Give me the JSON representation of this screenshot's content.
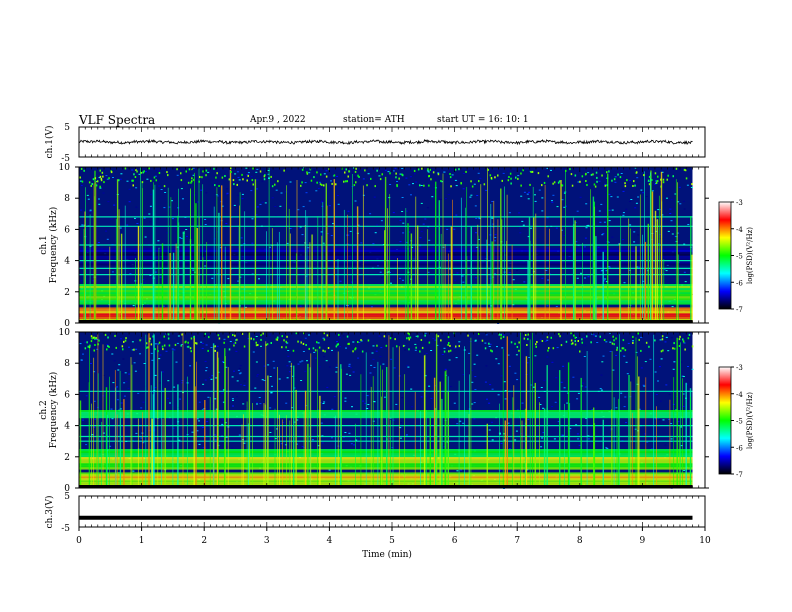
{
  "header": {
    "title": "VLF  Spectra",
    "date": "Apr.9  , 2022",
    "station": "station= ATH",
    "start": "start  UT  =   16: 10: 1"
  },
  "colors": {
    "spectrogram_background": "#00127a",
    "colorbar_stops": [
      "#000000",
      "#0000ff",
      "#00ffff",
      "#00ff00",
      "#ffff00",
      "#ff0000",
      "#ffffff"
    ]
  },
  "chart_data": [
    {
      "type": "line",
      "panel": "ch1-waveform",
      "ylabel": "ch.1(V)",
      "yticks": [
        "5",
        "-5"
      ],
      "ylim": [
        -5,
        5
      ],
      "x_range_min": [
        0,
        9.8
      ],
      "series": [
        {
          "values": "noisy trace near 0 V, amplitude about ±0.6 V"
        }
      ]
    },
    {
      "type": "heatmap",
      "panel": "ch1-spectrogram",
      "ylabel": "Frequency  (kHz)",
      "channel_label": "ch.1",
      "yticks": [
        "0",
        "2",
        "4",
        "6",
        "8",
        "10"
      ],
      "ylim": [
        0,
        10
      ],
      "xlim": [
        0,
        10
      ],
      "data_end_min": 9.8,
      "colorbar": {
        "label": "log(PSD)(V²/Hz)",
        "ticks": [
          "-3",
          "-4",
          "-5",
          "-6",
          "-7"
        ],
        "range": [
          -7,
          -3
        ]
      },
      "features": [
        {
          "name": "strong low-frequency band",
          "freq_khz": [
            0,
            1.0
          ],
          "log_psd": -4
        },
        {
          "name": "enhanced band",
          "freq_khz": [
            1.2,
            2.5
          ],
          "log_psd": -5
        },
        {
          "name": "quiet band",
          "freq_khz": [
            3.7,
            4.8
          ],
          "log_psd": -6.8
        },
        {
          "name": "horizontal tone lines",
          "freq_khz": [
            3.5,
            3.1,
            4.0,
            5.0,
            6.2,
            6.8
          ],
          "log_psd": -5.5
        },
        {
          "name": "broadband sferics (vertical streaks)",
          "freq_khz": [
            0,
            10
          ],
          "log_psd": -5
        }
      ]
    },
    {
      "type": "heatmap",
      "panel": "ch2-spectrogram",
      "ylabel": "Frequency  (kHz)",
      "channel_label": "ch.2",
      "yticks": [
        "0",
        "2",
        "4",
        "6",
        "8",
        "10"
      ],
      "ylim": [
        0,
        10
      ],
      "xlim": [
        0,
        10
      ],
      "data_end_min": 9.8,
      "colorbar": {
        "label": "log(PSD)(V²/Hz)",
        "ticks": [
          "-3",
          "-4",
          "-5",
          "-6",
          "-7"
        ],
        "range": [
          -7,
          -3
        ]
      },
      "features": [
        {
          "name": "strong low-frequency band",
          "freq_khz": [
            0,
            1.0
          ],
          "log_psd": -4.5
        },
        {
          "name": "enhanced band",
          "freq_khz": [
            1.2,
            2.5
          ],
          "log_psd": -4.8
        },
        {
          "name": "tone band",
          "freq_khz": [
            4.5,
            5.0
          ],
          "log_psd": -5.2
        },
        {
          "name": "horizontal tone lines",
          "freq_khz": [
            3.0,
            3.3,
            4.0,
            6.2
          ],
          "log_psd": -5.5
        },
        {
          "name": "broadband sferics (vertical streaks)",
          "freq_khz": [
            0,
            10
          ],
          "log_psd": -5
        }
      ]
    },
    {
      "type": "line",
      "panel": "ch3-waveform",
      "ylabel": "ch.3(V)",
      "yticks": [
        "5",
        "-5"
      ],
      "ylim": [
        -5,
        5
      ],
      "x_range_min": [
        0,
        9.8
      ],
      "series": [
        {
          "values": "near-constant trace at about -2 V"
        }
      ]
    }
  ],
  "x_axis": {
    "label": "Time  (min)",
    "ticks": [
      "0",
      "1",
      "2",
      "3",
      "4",
      "5",
      "6",
      "7",
      "8",
      "9",
      "10"
    ],
    "range": [
      0,
      10
    ]
  }
}
